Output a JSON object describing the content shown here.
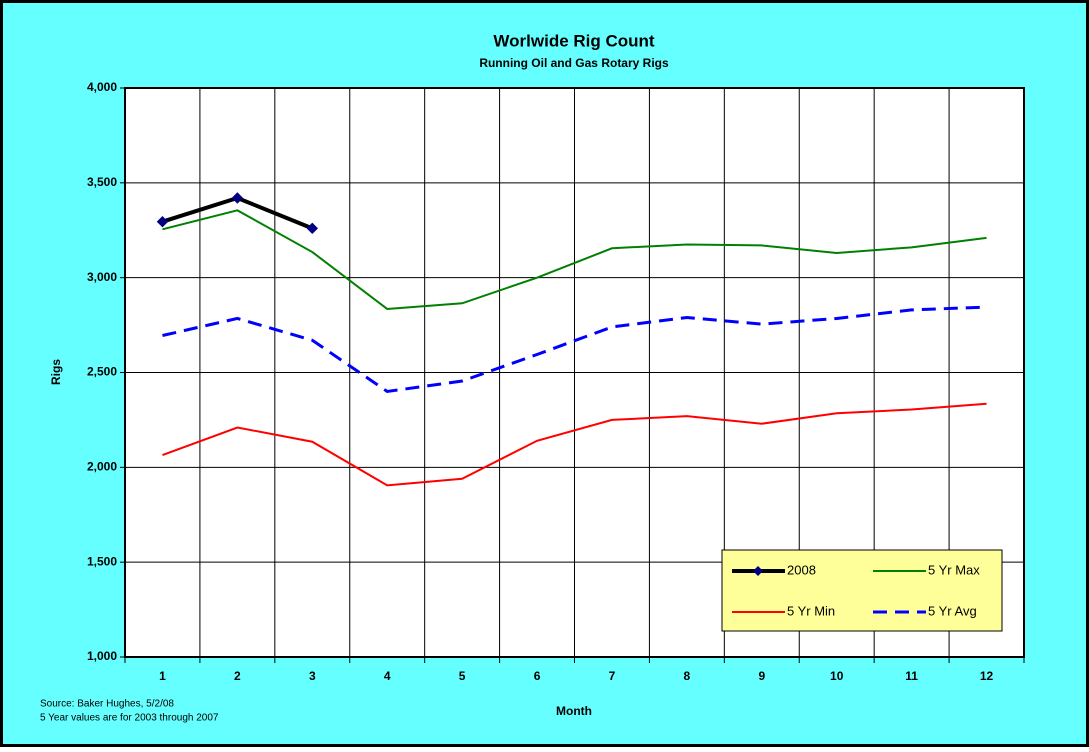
{
  "chart_data": {
    "type": "line",
    "title": "Worlwide Rig Count",
    "subtitle": "Running Oil and Gas Rotary Rigs",
    "y_label": "Rigs",
    "x_label": "Month",
    "notes": [
      "Source:  Baker Hughes, 5/2/08",
      "5 Year values are for 2003 through 2007"
    ],
    "categories": [
      "1",
      "2",
      "3",
      "4",
      "5",
      "6",
      "7",
      "8",
      "9",
      "10",
      "11",
      "12"
    ],
    "series": [
      {
        "name": "2008",
        "color": "#000000",
        "marker": "diamond",
        "marker_color": "#000080",
        "values": [
          3295,
          3420,
          3260,
          null,
          null,
          null,
          null,
          null,
          null,
          null,
          null,
          null
        ]
      },
      {
        "name": "5 Yr Max",
        "color": "#008000",
        "values": [
          3255,
          3355,
          3135,
          2835,
          2865,
          3000,
          3155,
          3175,
          3170,
          3130,
          3160,
          3210
        ]
      },
      {
        "name": "5 Yr Min",
        "color": "#ff0000",
        "values": [
          2065,
          2210,
          2135,
          1905,
          1940,
          2140,
          2250,
          2270,
          2230,
          2285,
          2305,
          2335
        ]
      },
      {
        "name": "5 Yr Avg",
        "color": "#0000ff",
        "dashed": true,
        "values": [
          2695,
          2785,
          2670,
          2400,
          2455,
          2595,
          2740,
          2790,
          2755,
          2785,
          2830,
          2845
        ]
      }
    ],
    "ylim": [
      1000,
      4000
    ],
    "yticks": [
      {
        "value": 1000,
        "label": "1,000"
      },
      {
        "value": 1500,
        "label": "1,500"
      },
      {
        "value": 2000,
        "label": "2,000"
      },
      {
        "value": 2500,
        "label": "2,500"
      },
      {
        "value": 3000,
        "label": "3,000"
      },
      {
        "value": 3500,
        "label": "3,500"
      },
      {
        "value": 4000,
        "label": "4,000"
      }
    ],
    "grid": true,
    "legend": "lower right",
    "background": "#66ffff",
    "legend_color": "#ffff99"
  }
}
